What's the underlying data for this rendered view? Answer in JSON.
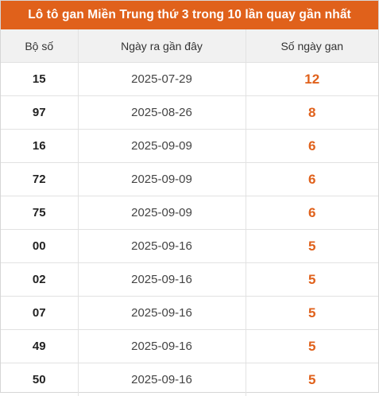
{
  "title": "Lô tô gan Miền Trung thứ 3 trong 10 lần quay gần nhất",
  "accent_color": "#e0611b",
  "headers": [
    "Bộ số",
    "Ngày ra gần đây",
    "Số ngày gan"
  ],
  "rows": [
    {
      "number": "15",
      "date": "2025-07-29",
      "days": "12"
    },
    {
      "number": "97",
      "date": "2025-08-26",
      "days": "8"
    },
    {
      "number": "16",
      "date": "2025-09-09",
      "days": "6"
    },
    {
      "number": "72",
      "date": "2025-09-09",
      "days": "6"
    },
    {
      "number": "75",
      "date": "2025-09-09",
      "days": "6"
    },
    {
      "number": "00",
      "date": "2025-09-16",
      "days": "5"
    },
    {
      "number": "02",
      "date": "2025-09-16",
      "days": "5"
    },
    {
      "number": "07",
      "date": "2025-09-16",
      "days": "5"
    },
    {
      "number": "49",
      "date": "2025-09-16",
      "days": "5"
    },
    {
      "number": "50",
      "date": "2025-09-16",
      "days": "5"
    }
  ]
}
